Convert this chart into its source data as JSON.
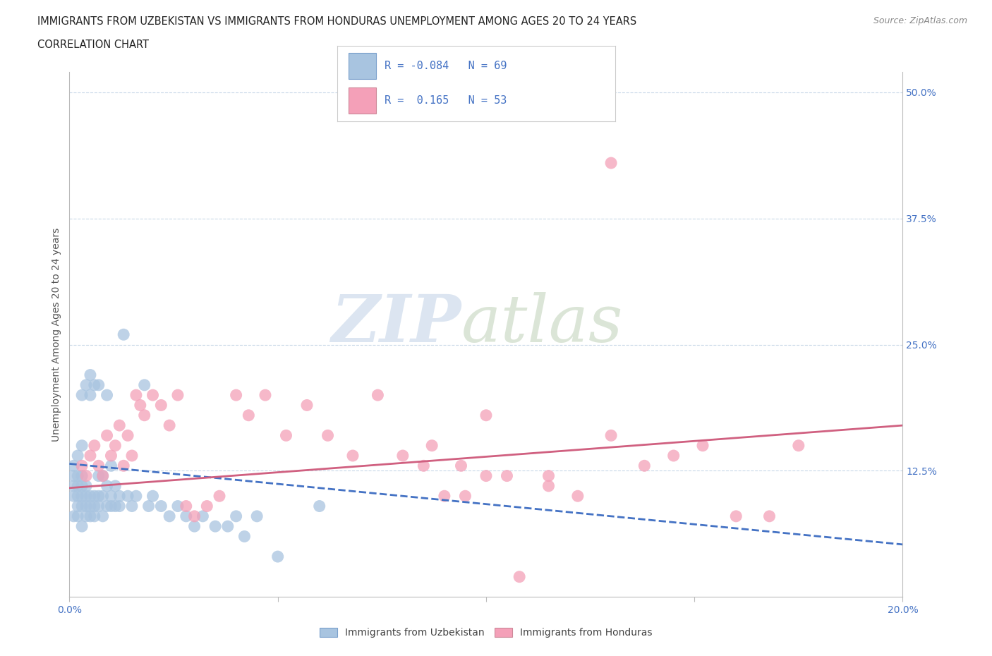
{
  "title_line1": "IMMIGRANTS FROM UZBEKISTAN VS IMMIGRANTS FROM HONDURAS UNEMPLOYMENT AMONG AGES 20 TO 24 YEARS",
  "title_line2": "CORRELATION CHART",
  "source_text": "Source: ZipAtlas.com",
  "ylabel": "Unemployment Among Ages 20 to 24 years",
  "xlim": [
    0.0,
    0.2
  ],
  "ylim": [
    0.0,
    0.52
  ],
  "ytick_positions_right": [
    0.125,
    0.25,
    0.375,
    0.5
  ],
  "ytick_labels_right": [
    "12.5%",
    "25.0%",
    "37.5%",
    "50.0%"
  ],
  "r_uzbekistan": -0.084,
  "n_uzbekistan": 69,
  "r_honduras": 0.165,
  "n_honduras": 53,
  "color_uzbekistan": "#a8c4e0",
  "color_uzbekistan_dark": "#5b8db8",
  "color_uzbekistan_line": "#4472c4",
  "color_honduras": "#f4a0b8",
  "color_honduras_dark": "#d06080",
  "color_honduras_line": "#d06080",
  "color_blue_text": "#4472c4",
  "legend_label_uzbekistan": "Immigrants from Uzbekistan",
  "legend_label_honduras": "Immigrants from Honduras",
  "background_color": "#ffffff",
  "grid_color": "#c8d8e8",
  "uz_trend_x": [
    0.0,
    0.2
  ],
  "uz_trend_y": [
    0.132,
    0.052
  ],
  "hn_trend_x": [
    0.0,
    0.2
  ],
  "hn_trend_y": [
    0.108,
    0.17
  ],
  "uzbekistan_x": [
    0.001,
    0.001,
    0.001,
    0.001,
    0.001,
    0.002,
    0.002,
    0.002,
    0.002,
    0.002,
    0.002,
    0.003,
    0.003,
    0.003,
    0.003,
    0.003,
    0.003,
    0.003,
    0.004,
    0.004,
    0.004,
    0.004,
    0.004,
    0.005,
    0.005,
    0.005,
    0.005,
    0.005,
    0.006,
    0.006,
    0.006,
    0.006,
    0.007,
    0.007,
    0.007,
    0.007,
    0.008,
    0.008,
    0.008,
    0.009,
    0.009,
    0.009,
    0.01,
    0.01,
    0.01,
    0.011,
    0.011,
    0.012,
    0.012,
    0.013,
    0.014,
    0.015,
    0.016,
    0.018,
    0.019,
    0.02,
    0.022,
    0.024,
    0.026,
    0.028,
    0.03,
    0.032,
    0.035,
    0.038,
    0.04,
    0.042,
    0.045,
    0.05,
    0.06
  ],
  "uzbekistan_y": [
    0.1,
    0.11,
    0.12,
    0.13,
    0.08,
    0.09,
    0.1,
    0.11,
    0.12,
    0.14,
    0.08,
    0.07,
    0.09,
    0.1,
    0.11,
    0.12,
    0.15,
    0.2,
    0.08,
    0.09,
    0.1,
    0.11,
    0.21,
    0.08,
    0.09,
    0.1,
    0.2,
    0.22,
    0.08,
    0.09,
    0.1,
    0.21,
    0.09,
    0.1,
    0.12,
    0.21,
    0.08,
    0.1,
    0.12,
    0.09,
    0.11,
    0.2,
    0.09,
    0.1,
    0.13,
    0.09,
    0.11,
    0.09,
    0.1,
    0.26,
    0.1,
    0.09,
    0.1,
    0.21,
    0.09,
    0.1,
    0.09,
    0.08,
    0.09,
    0.08,
    0.07,
    0.08,
    0.07,
    0.07,
    0.08,
    0.06,
    0.08,
    0.04,
    0.09
  ],
  "honduras_x": [
    0.003,
    0.004,
    0.005,
    0.006,
    0.007,
    0.008,
    0.009,
    0.01,
    0.011,
    0.012,
    0.013,
    0.014,
    0.015,
    0.016,
    0.017,
    0.018,
    0.02,
    0.022,
    0.024,
    0.026,
    0.028,
    0.03,
    0.033,
    0.036,
    0.04,
    0.043,
    0.047,
    0.052,
    0.057,
    0.062,
    0.068,
    0.074,
    0.08,
    0.087,
    0.094,
    0.1,
    0.108,
    0.115,
    0.122,
    0.13,
    0.138,
    0.145,
    0.152,
    0.16,
    0.168,
    0.175,
    0.1,
    0.115,
    0.13,
    0.085,
    0.09,
    0.095,
    0.105
  ],
  "honduras_y": [
    0.13,
    0.12,
    0.14,
    0.15,
    0.13,
    0.12,
    0.16,
    0.14,
    0.15,
    0.17,
    0.13,
    0.16,
    0.14,
    0.2,
    0.19,
    0.18,
    0.2,
    0.19,
    0.17,
    0.2,
    0.09,
    0.08,
    0.09,
    0.1,
    0.2,
    0.18,
    0.2,
    0.16,
    0.19,
    0.16,
    0.14,
    0.2,
    0.14,
    0.15,
    0.13,
    0.12,
    0.02,
    0.11,
    0.1,
    0.43,
    0.13,
    0.14,
    0.15,
    0.08,
    0.08,
    0.15,
    0.18,
    0.12,
    0.16,
    0.13,
    0.1,
    0.1,
    0.12
  ]
}
